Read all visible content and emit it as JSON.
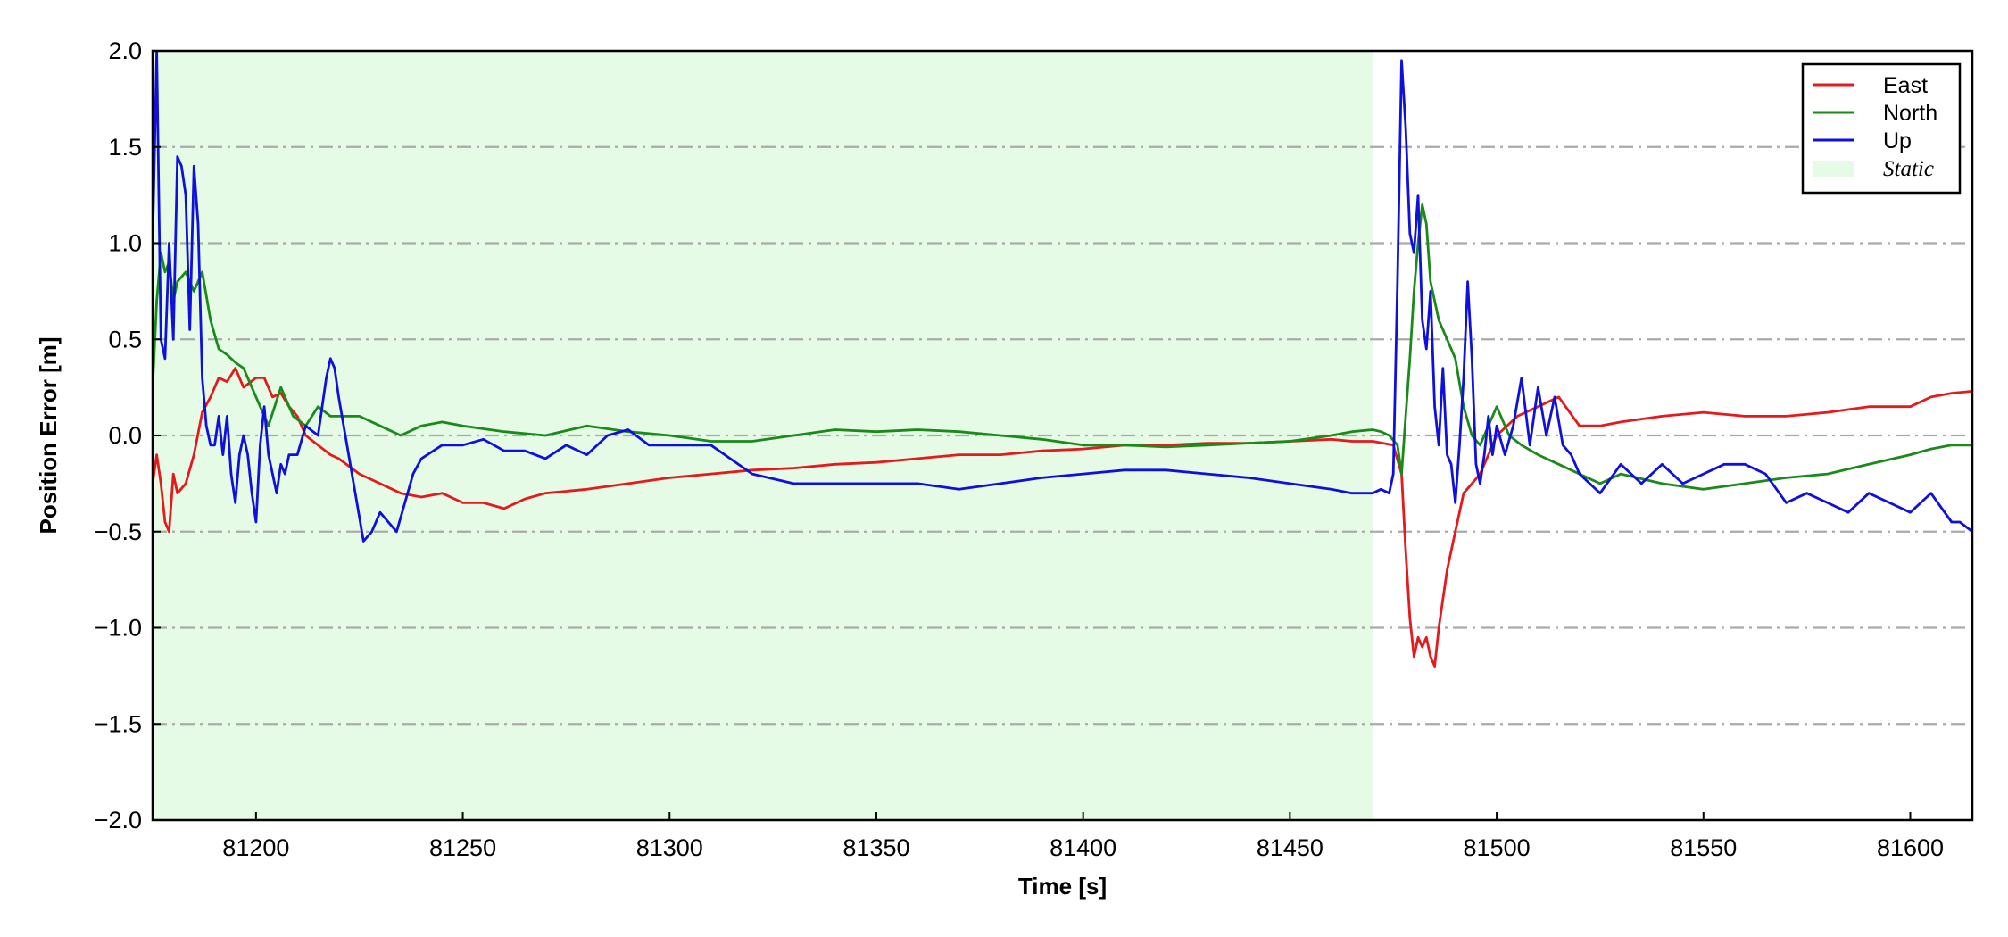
{
  "chart_data": {
    "type": "line",
    "title": "",
    "xlabel": "Time [s]",
    "ylabel": "Position Error [m]",
    "xlim": [
      81175,
      81615
    ],
    "ylim": [
      -2.0,
      2.0
    ],
    "x_ticks": [
      81200,
      81250,
      81300,
      81350,
      81400,
      81450,
      81500,
      81550,
      81600
    ],
    "x_tick_labels": [
      "81200",
      "81250",
      "81300",
      "81350",
      "81400",
      "81450",
      "81500",
      "81550",
      "81600"
    ],
    "y_ticks": [
      -2.0,
      -1.5,
      -1.0,
      -0.5,
      0.0,
      0.5,
      1.0,
      1.5,
      2.0
    ],
    "y_tick_labels": [
      "−2.0",
      "−1.5",
      "−1.0",
      "−0.5",
      "0.0",
      "0.5",
      "1.0",
      "1.5",
      "2.0"
    ],
    "grid": "horizontal dash-dot",
    "legend_position": "top-right",
    "shaded_region": {
      "name": "Static",
      "x_range": [
        81175,
        81470
      ],
      "color": "#e6fbe6"
    },
    "series": [
      {
        "name": "East",
        "color": "#e41a1c",
        "x": [
          81175,
          81176,
          81177,
          81178,
          81179,
          81180,
          81181,
          81183,
          81185,
          81187,
          81189,
          81191,
          81193,
          81195,
          81197,
          81200,
          81202,
          81204,
          81206,
          81208,
          81210,
          81212,
          81215,
          81218,
          81220,
          81225,
          81230,
          81235,
          81240,
          81245,
          81250,
          81255,
          81260,
          81265,
          81270,
          81280,
          81290,
          81300,
          81310,
          81320,
          81330,
          81340,
          81350,
          81360,
          81370,
          81380,
          81390,
          81400,
          81410,
          81420,
          81430,
          81440,
          81450,
          81460,
          81465,
          81470,
          81475,
          81477,
          81478,
          81479,
          81480,
          81481,
          81482,
          81483,
          81484,
          81485,
          81486,
          81488,
          81490,
          81492,
          81494,
          81496,
          81500,
          81505,
          81510,
          81515,
          81520,
          81525,
          81530,
          81540,
          81550,
          81560,
          81570,
          81580,
          81590,
          81600,
          81605,
          81610,
          81615
        ],
        "y": [
          -0.25,
          -0.1,
          -0.25,
          -0.45,
          -0.5,
          -0.2,
          -0.3,
          -0.25,
          -0.1,
          0.12,
          0.2,
          0.3,
          0.28,
          0.35,
          0.25,
          0.3,
          0.3,
          0.2,
          0.22,
          0.15,
          0.1,
          0.0,
          -0.05,
          -0.1,
          -0.12,
          -0.2,
          -0.25,
          -0.3,
          -0.32,
          -0.3,
          -0.35,
          -0.35,
          -0.38,
          -0.33,
          -0.3,
          -0.28,
          -0.25,
          -0.22,
          -0.2,
          -0.18,
          -0.17,
          -0.15,
          -0.14,
          -0.12,
          -0.1,
          -0.1,
          -0.08,
          -0.07,
          -0.05,
          -0.05,
          -0.04,
          -0.04,
          -0.03,
          -0.02,
          -0.03,
          -0.03,
          -0.05,
          -0.2,
          -0.6,
          -0.95,
          -1.15,
          -1.05,
          -1.1,
          -1.05,
          -1.15,
          -1.2,
          -1.0,
          -0.7,
          -0.5,
          -0.3,
          -0.25,
          -0.2,
          0.0,
          0.1,
          0.15,
          0.2,
          0.05,
          0.05,
          0.07,
          0.1,
          0.12,
          0.1,
          0.1,
          0.12,
          0.15,
          0.15,
          0.2,
          0.22,
          0.23
        ]
      },
      {
        "name": "North",
        "color": "#1a8a1a",
        "x": [
          81175,
          81176,
          81177,
          81178,
          81179,
          81180,
          81181,
          81183,
          81185,
          81187,
          81189,
          81191,
          81193,
          81195,
          81197,
          81200,
          81203,
          81206,
          81209,
          81212,
          81215,
          81218,
          81220,
          81225,
          81230,
          81235,
          81240,
          81245,
          81250,
          81260,
          81270,
          81280,
          81290,
          81300,
          81310,
          81320,
          81330,
          81340,
          81350,
          81360,
          81370,
          81380,
          81390,
          81400,
          81410,
          81420,
          81430,
          81440,
          81450,
          81460,
          81465,
          81470,
          81472,
          81474,
          81476,
          81477,
          81478,
          81479,
          81480,
          81481,
          81482,
          81483,
          81484,
          81486,
          81488,
          81490,
          81492,
          81494,
          81496,
          81498,
          81500,
          81503,
          81506,
          81510,
          81515,
          81520,
          81525,
          81530,
          81540,
          81550,
          81560,
          81570,
          81580,
          81590,
          81600,
          81605,
          81610,
          81615
        ],
        "y": [
          0.25,
          0.7,
          0.95,
          0.85,
          0.9,
          0.7,
          0.8,
          0.85,
          0.75,
          0.85,
          0.6,
          0.45,
          0.42,
          0.38,
          0.35,
          0.2,
          0.05,
          0.25,
          0.1,
          0.05,
          0.15,
          0.1,
          0.1,
          0.1,
          0.05,
          0.0,
          0.05,
          0.07,
          0.05,
          0.02,
          0.0,
          0.05,
          0.02,
          0.0,
          -0.03,
          -0.03,
          0.0,
          0.03,
          0.02,
          0.03,
          0.02,
          0.0,
          -0.02,
          -0.05,
          -0.05,
          -0.06,
          -0.05,
          -0.04,
          -0.03,
          0.0,
          0.02,
          0.03,
          0.02,
          0.0,
          -0.05,
          -0.2,
          0.1,
          0.4,
          0.75,
          1.0,
          1.2,
          1.1,
          0.8,
          0.6,
          0.5,
          0.4,
          0.15,
          0.0,
          -0.05,
          0.05,
          0.15,
          0.0,
          -0.05,
          -0.1,
          -0.15,
          -0.2,
          -0.25,
          -0.2,
          -0.25,
          -0.28,
          -0.25,
          -0.22,
          -0.2,
          -0.15,
          -0.1,
          -0.07,
          -0.05,
          -0.05
        ]
      },
      {
        "name": "Up",
        "color": "#1010dd",
        "x": [
          81175,
          81176,
          81177,
          81178,
          81179,
          81180,
          81181,
          81182,
          81183,
          81184,
          81185,
          81186,
          81187,
          81188,
          81189,
          81190,
          81191,
          81192,
          81193,
          81194,
          81195,
          81196,
          81197,
          81198,
          81199,
          81200,
          81201,
          81202,
          81203,
          81204,
          81205,
          81206,
          81207,
          81208,
          81210,
          81212,
          81215,
          81217,
          81218,
          81219,
          81220,
          81222,
          81224,
          81226,
          81228,
          81230,
          81232,
          81234,
          81236,
          81238,
          81240,
          81245,
          81250,
          81255,
          81260,
          81265,
          81270,
          81275,
          81280,
          81285,
          81290,
          81295,
          81300,
          81310,
          81320,
          81330,
          81340,
          81350,
          81360,
          81370,
          81380,
          81390,
          81400,
          81410,
          81420,
          81430,
          81440,
          81450,
          81460,
          81465,
          81470,
          81472,
          81474,
          81475,
          81476,
          81477,
          81478,
          81479,
          81480,
          81481,
          81482,
          81483,
          81484,
          81485,
          81486,
          81487,
          81488,
          81489,
          81490,
          81491,
          81492,
          81493,
          81494,
          81495,
          81496,
          81497,
          81498,
          81499,
          81500,
          81502,
          81504,
          81506,
          81508,
          81510,
          81512,
          81514,
          81516,
          81518,
          81520,
          81525,
          81530,
          81535,
          81540,
          81545,
          81550,
          81555,
          81560,
          81565,
          81570,
          81575,
          81580,
          81585,
          81590,
          81595,
          81600,
          81605,
          81610,
          81612,
          81615
        ],
        "y": [
          1.0,
          2.0,
          0.5,
          0.4,
          1.0,
          0.5,
          1.45,
          1.4,
          1.25,
          0.55,
          1.4,
          1.1,
          0.3,
          0.05,
          -0.05,
          -0.05,
          0.1,
          -0.1,
          0.1,
          -0.2,
          -0.35,
          -0.1,
          0.0,
          -0.1,
          -0.3,
          -0.45,
          -0.05,
          0.15,
          -0.1,
          -0.2,
          -0.3,
          -0.15,
          -0.2,
          -0.1,
          -0.1,
          0.05,
          0.0,
          0.3,
          0.4,
          0.35,
          0.2,
          -0.05,
          -0.3,
          -0.55,
          -0.5,
          -0.4,
          -0.45,
          -0.5,
          -0.35,
          -0.2,
          -0.12,
          -0.05,
          -0.05,
          -0.02,
          -0.08,
          -0.08,
          -0.12,
          -0.05,
          -0.1,
          0.0,
          0.03,
          -0.05,
          -0.05,
          -0.05,
          -0.2,
          -0.25,
          -0.25,
          -0.25,
          -0.25,
          -0.28,
          -0.25,
          -0.22,
          -0.2,
          -0.18,
          -0.18,
          -0.2,
          -0.22,
          -0.25,
          -0.28,
          -0.3,
          -0.3,
          -0.28,
          -0.3,
          -0.2,
          0.8,
          1.95,
          1.6,
          1.05,
          0.95,
          1.25,
          0.6,
          0.45,
          0.75,
          0.15,
          -0.05,
          0.35,
          -0.1,
          -0.15,
          -0.35,
          -0.05,
          0.3,
          0.8,
          0.4,
          -0.15,
          -0.25,
          -0.1,
          0.1,
          -0.1,
          0.05,
          -0.1,
          0.05,
          0.3,
          -0.05,
          0.25,
          0.0,
          0.2,
          -0.05,
          -0.1,
          -0.2,
          -0.3,
          -0.15,
          -0.25,
          -0.15,
          -0.25,
          -0.2,
          -0.15,
          -0.15,
          -0.2,
          -0.35,
          -0.3,
          -0.35,
          -0.4,
          -0.3,
          -0.35,
          -0.4,
          -0.3,
          -0.45,
          -0.45,
          -0.5
        ]
      }
    ]
  }
}
